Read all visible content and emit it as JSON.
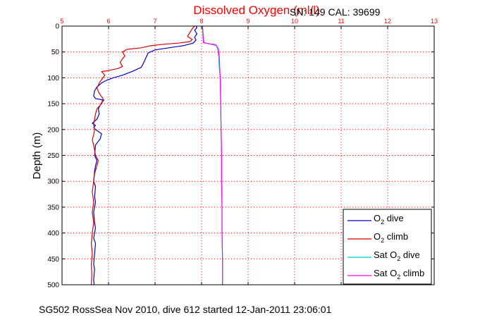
{
  "chart_data": {
    "type": "line",
    "title": "Dissolved Oxygen (ml/l)",
    "subtitle": "SN: 149  CAL: 39699",
    "ylabel": "Depth (m)",
    "footer": "SG502 RossSea Nov 2010, dive 612 started 12-Jan-2011 23:06:01",
    "xlim": [
      5,
      13
    ],
    "ylim": [
      0,
      500
    ],
    "y_reversed": true,
    "x_axis_position": "top",
    "grid": true,
    "x_ticks": [
      "5",
      "6",
      "7",
      "8",
      "9",
      "10",
      "11",
      "12",
      "13"
    ],
    "y_ticks": [
      "0",
      "50",
      "100",
      "150",
      "200",
      "250",
      "300",
      "350",
      "400",
      "450",
      "500"
    ],
    "legend_position": "bottom-right",
    "colors": {
      "axis": "#000000",
      "title": "#ff0000",
      "grid": "#ff0000",
      "xtick": "#ff0000"
    },
    "series": [
      {
        "name": "O2 dive",
        "legend_main": "O",
        "legend_sub": "2",
        "legend_suffix": " dive",
        "color": "#0000cc",
        "points": [
          [
            7.88,
            0
          ],
          [
            7.9,
            3
          ],
          [
            7.85,
            8
          ],
          [
            7.9,
            15
          ],
          [
            7.85,
            22
          ],
          [
            7.88,
            27
          ],
          [
            7.82,
            33
          ],
          [
            7.6,
            38
          ],
          [
            7.3,
            42
          ],
          [
            7.0,
            46
          ],
          [
            6.85,
            52
          ],
          [
            6.8,
            62
          ],
          [
            6.75,
            72
          ],
          [
            6.7,
            80
          ],
          [
            6.5,
            88
          ],
          [
            6.3,
            95
          ],
          [
            6.1,
            100
          ],
          [
            5.95,
            105
          ],
          [
            5.85,
            110
          ],
          [
            5.75,
            118
          ],
          [
            5.7,
            125
          ],
          [
            5.68,
            135
          ],
          [
            5.72,
            140
          ],
          [
            5.9,
            143
          ],
          [
            5.85,
            148
          ],
          [
            5.78,
            160
          ],
          [
            5.8,
            170
          ],
          [
            5.75,
            180
          ],
          [
            5.65,
            188
          ],
          [
            5.72,
            192
          ],
          [
            5.68,
            196
          ],
          [
            5.72,
            200
          ],
          [
            5.85,
            208
          ],
          [
            5.82,
            218
          ],
          [
            5.72,
            230
          ],
          [
            5.7,
            250
          ],
          [
            5.75,
            260
          ],
          [
            5.72,
            270
          ],
          [
            5.7,
            280
          ],
          [
            5.68,
            300
          ],
          [
            5.72,
            310
          ],
          [
            5.7,
            330
          ],
          [
            5.72,
            340
          ],
          [
            5.68,
            360
          ],
          [
            5.7,
            380
          ],
          [
            5.72,
            390
          ],
          [
            5.68,
            410
          ],
          [
            5.72,
            420
          ],
          [
            5.7,
            440
          ],
          [
            5.68,
            460
          ],
          [
            5.7,
            470
          ],
          [
            5.68,
            490
          ],
          [
            5.69,
            500
          ]
        ]
      },
      {
        "name": "O2 climb",
        "legend_main": "O",
        "legend_sub": "2",
        "legend_suffix": " climb",
        "color": "#dd0000",
        "points": [
          [
            7.85,
            0
          ],
          [
            7.8,
            5
          ],
          [
            7.75,
            12
          ],
          [
            7.7,
            20
          ],
          [
            7.8,
            26
          ],
          [
            7.75,
            30
          ],
          [
            7.5,
            33
          ],
          [
            7.2,
            35
          ],
          [
            6.9,
            38
          ],
          [
            6.7,
            42
          ],
          [
            6.4,
            45
          ],
          [
            6.3,
            50
          ],
          [
            6.35,
            58
          ],
          [
            6.3,
            63
          ],
          [
            6.25,
            70
          ],
          [
            6.3,
            78
          ],
          [
            6.2,
            82
          ],
          [
            6.0,
            86
          ],
          [
            5.85,
            88
          ],
          [
            5.92,
            95
          ],
          [
            5.88,
            100
          ],
          [
            5.8,
            110
          ],
          [
            5.75,
            120
          ],
          [
            5.8,
            130
          ],
          [
            5.88,
            140
          ],
          [
            5.85,
            150
          ],
          [
            5.75,
            160
          ],
          [
            5.72,
            170
          ],
          [
            5.7,
            180
          ],
          [
            5.68,
            190
          ],
          [
            5.7,
            200
          ],
          [
            5.68,
            210
          ],
          [
            5.65,
            220
          ],
          [
            5.68,
            230
          ],
          [
            5.7,
            240
          ],
          [
            5.72,
            250
          ],
          [
            5.78,
            260
          ],
          [
            5.75,
            270
          ],
          [
            5.7,
            285
          ],
          [
            5.68,
            300
          ],
          [
            5.65,
            320
          ],
          [
            5.68,
            340
          ],
          [
            5.65,
            360
          ],
          [
            5.68,
            380
          ],
          [
            5.65,
            400
          ],
          [
            5.63,
            420
          ],
          [
            5.65,
            440
          ],
          [
            5.63,
            460
          ],
          [
            5.64,
            480
          ],
          [
            5.63,
            500
          ]
        ]
      },
      {
        "name": "Sat O2 dive",
        "legend_main": "Sat O",
        "legend_sub": "2",
        "legend_suffix": " dive",
        "color": "#00cccc",
        "points": [
          [
            8.02,
            0
          ],
          [
            8.04,
            20
          ],
          [
            8.05,
            32
          ],
          [
            8.2,
            35
          ],
          [
            8.32,
            38
          ],
          [
            8.35,
            45
          ],
          [
            8.37,
            60
          ],
          [
            8.38,
            80
          ],
          [
            8.4,
            100
          ],
          [
            8.41,
            150
          ],
          [
            8.42,
            200
          ],
          [
            8.43,
            250
          ],
          [
            8.43,
            300
          ],
          [
            8.44,
            350
          ],
          [
            8.44,
            400
          ],
          [
            8.45,
            450
          ],
          [
            8.45,
            500
          ]
        ]
      },
      {
        "name": "Sat O2 climb",
        "legend_main": "Sat O",
        "legend_sub": "2",
        "legend_suffix": " climb",
        "color": "#ff00ff",
        "points": [
          [
            8.02,
            0
          ],
          [
            8.03,
            20
          ],
          [
            8.04,
            32
          ],
          [
            8.15,
            34
          ],
          [
            8.3,
            36
          ],
          [
            8.36,
            44
          ],
          [
            8.38,
            60
          ],
          [
            8.39,
            80
          ],
          [
            8.4,
            100
          ],
          [
            8.41,
            150
          ],
          [
            8.42,
            200
          ],
          [
            8.43,
            250
          ],
          [
            8.43,
            300
          ],
          [
            8.44,
            350
          ],
          [
            8.44,
            400
          ],
          [
            8.45,
            450
          ],
          [
            8.45,
            500
          ]
        ]
      }
    ]
  }
}
